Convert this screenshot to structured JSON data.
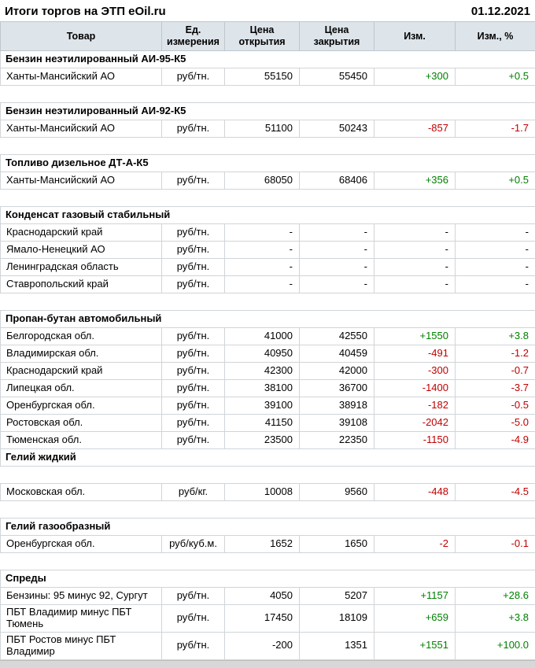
{
  "header": {
    "title": "Итоги торгов на ЭТП eOil.ru",
    "date": "01.12.2021"
  },
  "colors": {
    "positive": "#008000",
    "negative": "#c00000",
    "header_bg": "#dde4ea"
  },
  "table": {
    "columns": [
      "Товар",
      "Ед. измерения",
      "Цена открытия",
      "Цена закрытия",
      "Изм.",
      "Изм., %"
    ],
    "sections": [
      {
        "title": "Бензин неэтилированный АИ-95-К5",
        "gap_after_header": false,
        "gap_after": true,
        "rows": [
          {
            "name": "Ханты-Мансийский АО",
            "unit": "руб/тн.",
            "open": "55150",
            "close": "55450",
            "change": "+300",
            "change_pct": "+0.5",
            "trend": "up"
          }
        ]
      },
      {
        "title": "Бензин неэтилированный АИ-92-К5",
        "gap_after_header": false,
        "gap_after": true,
        "rows": [
          {
            "name": "Ханты-Мансийский АО",
            "unit": "руб/тн.",
            "open": "51100",
            "close": "50243",
            "change": "-857",
            "change_pct": "-1.7",
            "trend": "down"
          }
        ]
      },
      {
        "title": "Топливо дизельное ДТ-А-К5",
        "gap_after_header": false,
        "gap_after": true,
        "rows": [
          {
            "name": "Ханты-Мансийский АО",
            "unit": "руб/тн.",
            "open": "68050",
            "close": "68406",
            "change": "+356",
            "change_pct": "+0.5",
            "trend": "up"
          }
        ]
      },
      {
        "title": "Конденсат газовый стабильный",
        "gap_after_header": false,
        "gap_after": true,
        "rows": [
          {
            "name": "Краснодарский край",
            "unit": "руб/тн.",
            "open": "-",
            "close": "-",
            "change": "-",
            "change_pct": "-",
            "trend": "none"
          },
          {
            "name": "Ямало-Ненецкий АО",
            "unit": "руб/тн.",
            "open": "-",
            "close": "-",
            "change": "-",
            "change_pct": "-",
            "trend": "none"
          },
          {
            "name": "Ленинградская область",
            "unit": "руб/тн.",
            "open": "-",
            "close": "-",
            "change": "-",
            "change_pct": "-",
            "trend": "none"
          },
          {
            "name": "Ставропольский край",
            "unit": "руб/тн.",
            "open": "-",
            "close": "-",
            "change": "-",
            "change_pct": "-",
            "trend": "none"
          }
        ]
      },
      {
        "title": "Пропан-бутан автомобильный",
        "gap_after_header": false,
        "gap_after": false,
        "rows": [
          {
            "name": "Белгородская обл.",
            "unit": "руб/тн.",
            "open": "41000",
            "close": "42550",
            "change": "+1550",
            "change_pct": "+3.8",
            "trend": "up"
          },
          {
            "name": "Владимирская обл.",
            "unit": "руб/тн.",
            "open": "40950",
            "close": "40459",
            "change": "-491",
            "change_pct": "-1.2",
            "trend": "down"
          },
          {
            "name": "Краснодарский край",
            "unit": "руб/тн.",
            "open": "42300",
            "close": "42000",
            "change": "-300",
            "change_pct": "-0.7",
            "trend": "down"
          },
          {
            "name": "Липецкая обл.",
            "unit": "руб/тн.",
            "open": "38100",
            "close": "36700",
            "change": "-1400",
            "change_pct": "-3.7",
            "trend": "down"
          },
          {
            "name": "Оренбургская обл.",
            "unit": "руб/тн.",
            "open": "39100",
            "close": "38918",
            "change": "-182",
            "change_pct": "-0.5",
            "trend": "down"
          },
          {
            "name": "Ростовская обл.",
            "unit": "руб/тн.",
            "open": "41150",
            "close": "39108",
            "change": "-2042",
            "change_pct": "-5.0",
            "trend": "down"
          },
          {
            "name": "Тюменская обл.",
            "unit": "руб/тн.",
            "open": "23500",
            "close": "22350",
            "change": "-1150",
            "change_pct": "-4.9",
            "trend": "down"
          }
        ]
      },
      {
        "title": "Гелий жидкий",
        "gap_after_header": true,
        "gap_after": true,
        "rows": [
          {
            "name": "Московская обл.",
            "unit": "руб/кг.",
            "open": "10008",
            "close": "9560",
            "change": "-448",
            "change_pct": "-4.5",
            "trend": "down"
          }
        ]
      },
      {
        "title": "Гелий газообразный",
        "gap_after_header": false,
        "gap_after": true,
        "rows": [
          {
            "name": "Оренбургская обл.",
            "unit": "руб/куб.м.",
            "open": "1652",
            "close": "1650",
            "change": "-2",
            "change_pct": "-0.1",
            "trend": "down"
          }
        ]
      },
      {
        "title": "Спреды",
        "gap_after_header": false,
        "gap_after": false,
        "rows": [
          {
            "name": "Бензины: 95 минус 92, Сургут",
            "unit": "руб/тн.",
            "open": "4050",
            "close": "5207",
            "change": "+1157",
            "change_pct": "+28.6",
            "trend": "up"
          },
          {
            "name": "ПБТ Владимир минус ПБТ Тюмень",
            "unit": "руб/тн.",
            "open": "17450",
            "close": "18109",
            "change": "+659",
            "change_pct": "+3.8",
            "trend": "up"
          },
          {
            "name": "ПБТ Ростов минус ПБТ Владимир",
            "unit": "руб/тн.",
            "open": "-200",
            "close": "1351",
            "change": "+1551",
            "change_pct": "+100.0",
            "trend": "up"
          }
        ]
      }
    ]
  }
}
